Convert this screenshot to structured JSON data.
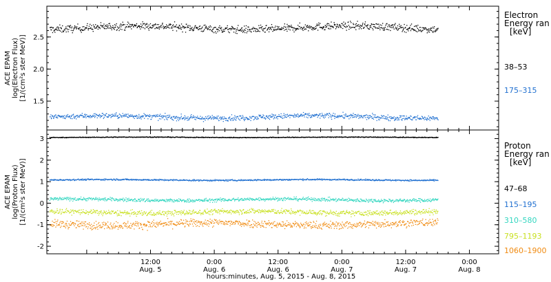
{
  "chart_data": [
    {
      "type": "scatter",
      "panel": "electron",
      "ylabel": [
        "ACE EPAM",
        "log(Electron Flux)",
        "[1/(cm²s ster MeV)]"
      ],
      "yticks": [
        2.5,
        2.0,
        1.5
      ],
      "ytick_labels": [
        "2.5",
        "2.0",
        "1.5"
      ],
      "ylim": [
        1.05,
        2.98
      ],
      "legend_title": [
        "Electron",
        "Energy ran",
        "[keV]"
      ],
      "series": [
        {
          "name": "38–53",
          "color": "#000000",
          "mean": 2.65,
          "spread": 0.07,
          "wave": 0.03
        },
        {
          "name": "175–315",
          "color": "#1f6fd0",
          "mean": 1.26,
          "spread": 0.05,
          "wave": 0.02
        }
      ]
    },
    {
      "type": "scatter",
      "panel": "proton",
      "ylabel": [
        "ACE EPAM",
        "log(Proton Flux)",
        "[1/(cm²s ster MeV)]"
      ],
      "yticks": [
        3,
        2,
        1,
        0,
        -1,
        -2
      ],
      "ytick_labels": [
        "3",
        "2",
        "1",
        "0",
        "-1",
        "-2"
      ],
      "ylim": [
        -2.35,
        3.4
      ],
      "legend_title": [
        "Proton",
        "Energy ran",
        "[keV]"
      ],
      "series": [
        {
          "name": "47–68",
          "color": "#000000",
          "mean": 3.08,
          "spread": 0.02,
          "wave": 0.01
        },
        {
          "name": "115–195",
          "color": "#1f6fd0",
          "mean": 1.1,
          "spread": 0.04,
          "wave": 0.02
        },
        {
          "name": "310–580",
          "color": "#33d6c0",
          "mean": 0.18,
          "spread": 0.1,
          "wave": 0.04
        },
        {
          "name": "795–1193",
          "color": "#c8e020",
          "mean": -0.4,
          "spread": 0.15,
          "wave": 0.05
        },
        {
          "name": "1060–1900",
          "color": "#f08a10",
          "mean": -0.95,
          "spread": 0.22,
          "wave": 0.06
        }
      ]
    }
  ],
  "x_axis": {
    "title": "hours:minutes, Aug.  5, 2015 - Aug.  8, 2015",
    "xlim_hours": [
      -7.5,
      77.5
    ],
    "data_span_hours": [
      -7,
      66
    ],
    "major_ticks": [
      {
        "hour": 12,
        "time": "12:00",
        "date": "Aug. 5"
      },
      {
        "hour": 24,
        "time": "0:00",
        "date": "Aug. 6"
      },
      {
        "hour": 36,
        "time": "12:00",
        "date": "Aug. 6"
      },
      {
        "hour": 48,
        "time": "0:00",
        "date": "Aug. 7"
      },
      {
        "hour": 60,
        "time": "12:00",
        "date": "Aug. 7"
      },
      {
        "hour": 72,
        "time": "0:00",
        "date": "Aug. 8"
      }
    ]
  }
}
